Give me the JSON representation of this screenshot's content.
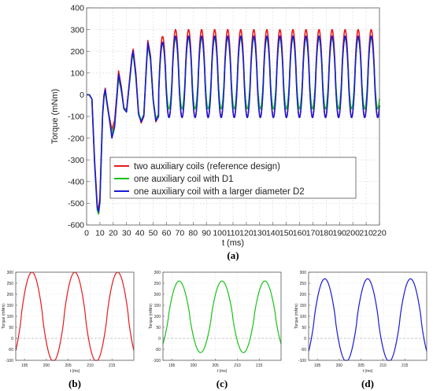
{
  "chart_data": [
    {
      "id": "a",
      "type": "line",
      "caption": "(a)",
      "xlabel": "t (ms)",
      "ylabel": "Torque (mNm)",
      "xlim": [
        0,
        220
      ],
      "ylim": [
        -600,
        400
      ],
      "xticks": [
        0,
        10,
        20,
        30,
        40,
        50,
        60,
        70,
        80,
        90,
        100,
        110,
        120,
        130,
        140,
        150,
        160,
        170,
        180,
        190,
        200,
        210,
        220
      ],
      "yticks": [
        -600,
        -500,
        -400,
        -300,
        -200,
        -100,
        0,
        100,
        200,
        300,
        400
      ],
      "grid": true,
      "legend_position": "bottom-right",
      "period_ms": 9.8,
      "series": [
        {
          "name": "two auxiliary coils (reference design)",
          "color": "#e8191c",
          "transient": [
            [
              0,
              0
            ],
            [
              2,
              0
            ],
            [
              4,
              -20
            ],
            [
              6,
              -300
            ],
            [
              8,
              -510
            ],
            [
              9,
              -525
            ],
            [
              10,
              -470
            ],
            [
              12,
              -90
            ],
            [
              13,
              -5
            ],
            [
              14,
              30
            ],
            [
              15,
              -20
            ],
            [
              17,
              -100
            ],
            [
              19,
              -160
            ],
            [
              21,
              -120
            ],
            [
              23,
              20
            ],
            [
              24,
              110
            ],
            [
              26,
              40
            ],
            [
              28,
              -60
            ],
            [
              30,
              -70
            ],
            [
              32,
              50
            ],
            [
              34,
              180
            ],
            [
              35,
              210
            ],
            [
              37,
              100
            ],
            [
              39,
              -80
            ],
            [
              41,
              -130
            ],
            [
              43,
              -100
            ],
            [
              45,
              150
            ],
            [
              46,
              250
            ],
            [
              48,
              180
            ],
            [
              50,
              -20
            ],
            [
              52,
              -125
            ],
            [
              54,
              -100
            ]
          ],
          "steady_max": 300,
          "steady_min": -105
        },
        {
          "name": "one auxiliary coil with D1",
          "color": "#19c219",
          "transient": [
            [
              0,
              0
            ],
            [
              2,
              0
            ],
            [
              4,
              -20
            ],
            [
              6,
              -320
            ],
            [
              8,
              -530
            ],
            [
              9,
              -550
            ],
            [
              10,
              -500
            ],
            [
              12,
              -100
            ],
            [
              13,
              -20
            ],
            [
              14,
              20
            ],
            [
              15,
              -30
            ],
            [
              17,
              -110
            ],
            [
              19,
              -180
            ],
            [
              21,
              -140
            ],
            [
              23,
              0
            ],
            [
              24,
              80
            ],
            [
              26,
              20
            ],
            [
              28,
              -60
            ],
            [
              30,
              -75
            ],
            [
              32,
              40
            ],
            [
              34,
              160
            ],
            [
              35,
              190
            ],
            [
              37,
              80
            ],
            [
              39,
              -80
            ],
            [
              41,
              -120
            ],
            [
              43,
              -90
            ],
            [
              45,
              130
            ],
            [
              46,
              230
            ],
            [
              48,
              160
            ],
            [
              50,
              -20
            ],
            [
              52,
              -110
            ],
            [
              54,
              -90
            ]
          ],
          "steady_max": 260,
          "steady_min": -65
        },
        {
          "name": "one auxiliary coil with a larger diameter D2",
          "color": "#1a1ad6",
          "transient": [
            [
              0,
              0
            ],
            [
              2,
              0
            ],
            [
              4,
              -20
            ],
            [
              6,
              -310
            ],
            [
              8,
              -520
            ],
            [
              9,
              -540
            ],
            [
              10,
              -490
            ],
            [
              12,
              -95
            ],
            [
              13,
              -10
            ],
            [
              14,
              25
            ],
            [
              15,
              -25
            ],
            [
              17,
              -105
            ],
            [
              19,
              -200
            ],
            [
              21,
              -150
            ],
            [
              23,
              10
            ],
            [
              24,
              95
            ],
            [
              26,
              30
            ],
            [
              28,
              -65
            ],
            [
              30,
              -80
            ],
            [
              32,
              45
            ],
            [
              34,
              170
            ],
            [
              35,
              200
            ],
            [
              37,
              90
            ],
            [
              39,
              -90
            ],
            [
              41,
              -125
            ],
            [
              43,
              -95
            ],
            [
              45,
              140
            ],
            [
              46,
              240
            ],
            [
              48,
              170
            ],
            [
              50,
              -25
            ],
            [
              52,
              -120
            ],
            [
              54,
              -100
            ]
          ],
          "steady_max": 270,
          "steady_min": -105
        }
      ]
    },
    {
      "id": "b",
      "type": "line",
      "caption": "(b)",
      "xlabel": "t (ms)",
      "ylabel": "Torque (mNm)",
      "xlim": [
        193,
        220
      ],
      "ylim": [
        -100,
        300
      ],
      "xticks": [
        195,
        200,
        205,
        210,
        215
      ],
      "yticks": [
        -100,
        -50,
        0,
        50,
        100,
        150,
        200,
        250,
        300
      ],
      "grid": true,
      "series": [
        {
          "color": "#e8191c",
          "period_ms": 9.8,
          "peak_t": 196.7,
          "max": 300,
          "min": -105
        }
      ]
    },
    {
      "id": "c",
      "type": "line",
      "caption": "(c)",
      "xlabel": "t (ms)",
      "ylabel": "Torque (mNm)",
      "xlim": [
        193,
        220
      ],
      "ylim": [
        -100,
        300
      ],
      "xticks": [
        195,
        200,
        205,
        210,
        215
      ],
      "yticks": [
        -100,
        -50,
        0,
        50,
        100,
        150,
        200,
        250,
        300
      ],
      "grid": true,
      "series": [
        {
          "color": "#19c219",
          "period_ms": 9.8,
          "peak_t": 196.7,
          "max": 260,
          "min": -65
        }
      ]
    },
    {
      "id": "d",
      "type": "line",
      "caption": "(d)",
      "xlabel": "t (ms)",
      "ylabel": "Torque (mNm)",
      "xlim": [
        193,
        220
      ],
      "ylim": [
        -100,
        300
      ],
      "xticks": [
        195,
        200,
        205,
        210,
        215
      ],
      "yticks": [
        -100,
        -50,
        0,
        50,
        100,
        150,
        200,
        250,
        300
      ],
      "grid": true,
      "series": [
        {
          "color": "#1a1ad6",
          "period_ms": 9.8,
          "peak_t": 196.7,
          "max": 270,
          "min": -105
        }
      ]
    }
  ]
}
